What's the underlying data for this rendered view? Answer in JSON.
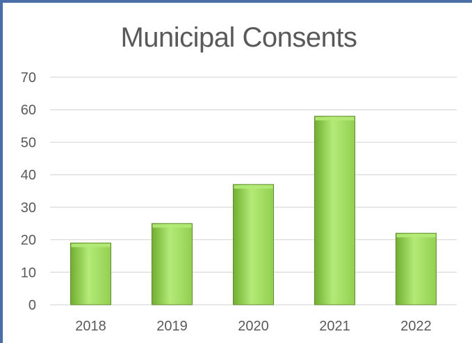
{
  "chart_data": {
    "type": "bar",
    "title": "Municipal Consents",
    "categories": [
      "2018",
      "2019",
      "2020",
      "2021",
      "2022"
    ],
    "values": [
      19,
      25,
      37,
      58,
      22
    ],
    "ylim": [
      0,
      70
    ],
    "yticks": [
      0,
      10,
      20,
      30,
      40,
      50,
      60,
      70
    ],
    "grid": true,
    "legend": "none",
    "colors": {
      "bar_fill_light": "#b4ea78",
      "bar_fill": "#92d050",
      "bar_fill_dark": "#6fae2e",
      "bar_stroke": "#5e8f2a",
      "gridline": "#d9d9d9",
      "text": "#595959",
      "frame": "#4a6fa8"
    }
  }
}
